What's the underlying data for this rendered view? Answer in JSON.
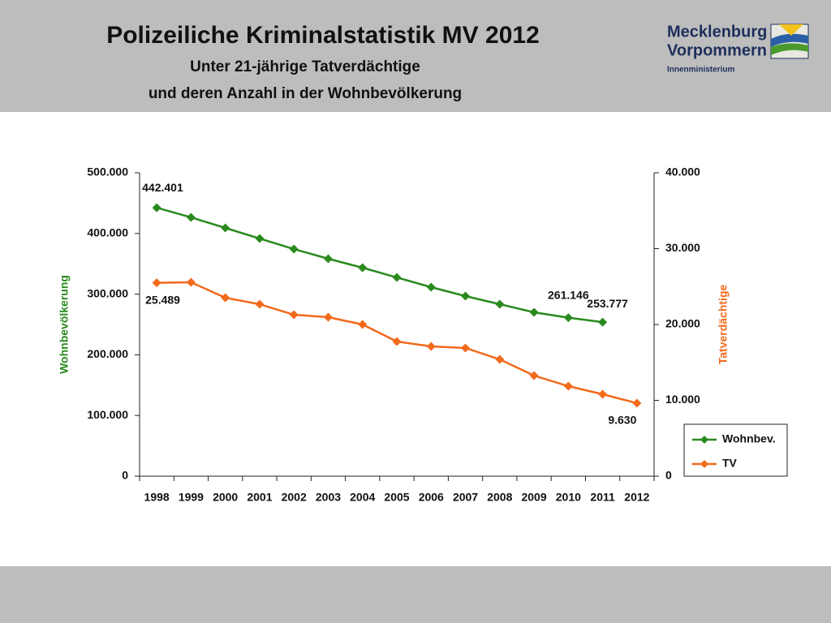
{
  "header": {
    "title": "Polizeiliche Kriminalstatistik MV 2012",
    "subtitle": [
      "Unter 21-jährige Tatverdächtige",
      "und deren Anzahl in der Wohnbevölkerung"
    ],
    "logo": [
      "Mecklenburg",
      "Vorpommern",
      "Innenministerium"
    ]
  },
  "chart_data": {
    "type": "line",
    "categories": [
      "1998",
      "1999",
      "2000",
      "2001",
      "2002",
      "2003",
      "2004",
      "2005",
      "2006",
      "2007",
      "2008",
      "2009",
      "2010",
      "2011",
      "2012"
    ],
    "ylabel": "Wohnbevölkerung",
    "y2label": "Tatverdächtige",
    "ylim": [
      0,
      500000
    ],
    "yticks": [
      0,
      {
        "value": 100000,
        "label": "100.000"
      },
      {
        "value": 200000,
        "label": "200.000"
      },
      {
        "value": 300000,
        "label": "300.000"
      },
      {
        "value": 400000,
        "label": "400.000"
      },
      {
        "value": 500000,
        "label": "500.000"
      }
    ],
    "y2lim": [
      0,
      40000
    ],
    "y2ticks": [
      0,
      {
        "value": 10000,
        "label": "10.000"
      },
      {
        "value": 20000,
        "label": "20.000"
      },
      {
        "value": 30000,
        "label": "30.000"
      },
      {
        "value": 40000,
        "label": "40.000"
      }
    ],
    "legend": "bottom-right",
    "series": [
      {
        "name": "Wohnbev.",
        "color": "#2a8a1e",
        "axis": "y",
        "values": [
          442401,
          426500,
          409100,
          391700,
          374300,
          358300,
          343600,
          327500,
          311500,
          296800,
          283400,
          270100,
          261146,
          253777,
          null
        ],
        "value_labels": [
          "442.401",
          null,
          null,
          null,
          null,
          null,
          null,
          null,
          null,
          null,
          null,
          null,
          "261.146",
          "253.777",
          null
        ]
      },
      {
        "name": "TV",
        "color": "#f26a1b",
        "axis": "y2",
        "values": [
          25489,
          25560,
          23530,
          22670,
          21280,
          20960,
          20000,
          17750,
          17110,
          16900,
          15400,
          13260,
          11870,
          10800,
          9630
        ],
        "value_labels": [
          "25.489",
          null,
          null,
          null,
          null,
          null,
          null,
          null,
          null,
          null,
          null,
          null,
          null,
          null,
          "9.630"
        ]
      }
    ]
  }
}
